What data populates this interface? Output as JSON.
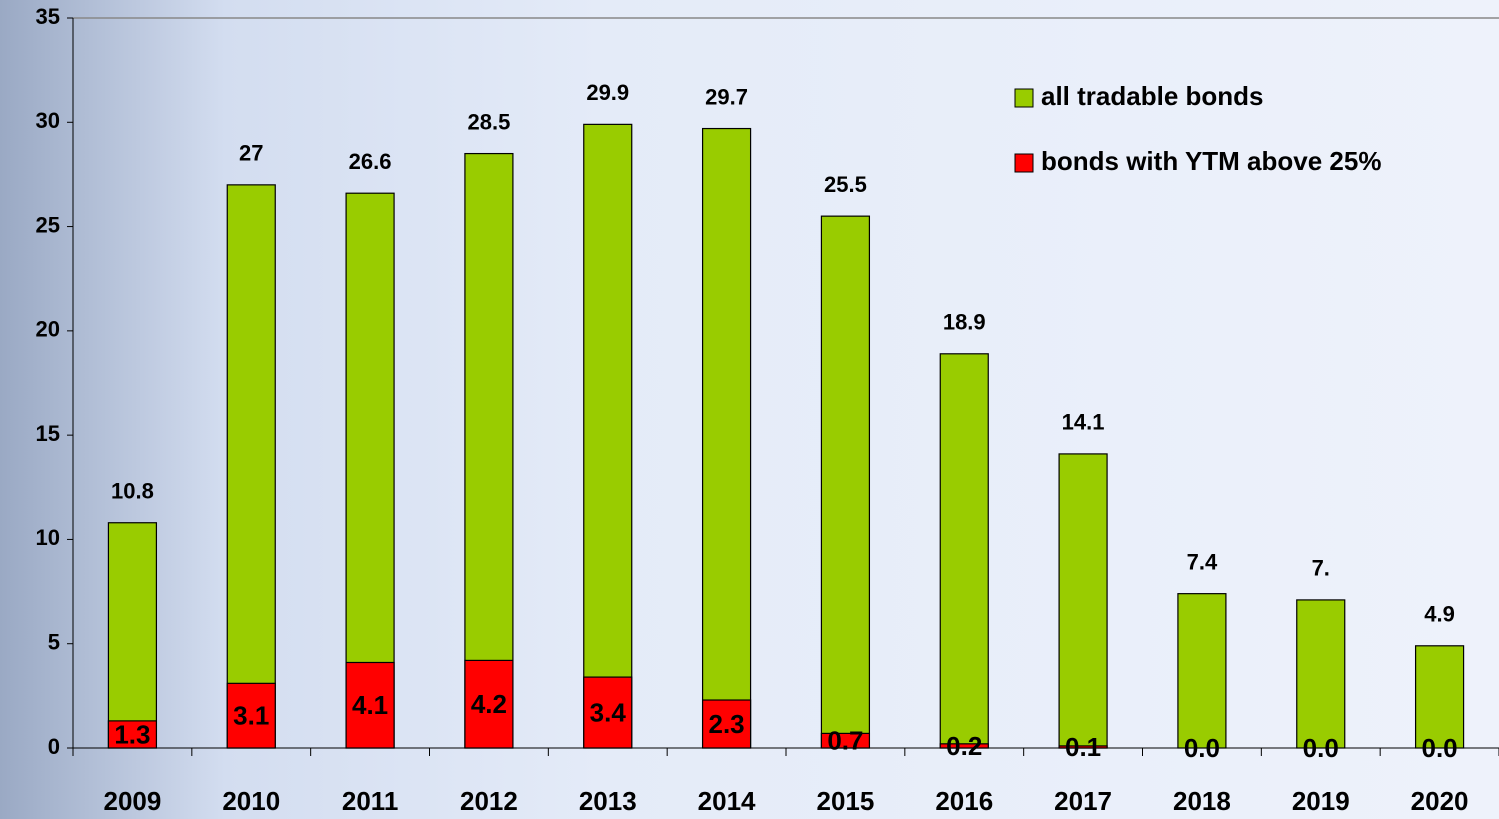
{
  "chart_data": {
    "type": "overlap-bar",
    "categories": [
      "2009",
      "2010",
      "2011",
      "2012",
      "2013",
      "2014",
      "2015",
      "2016",
      "2017",
      "2018",
      "2019",
      "2020"
    ],
    "series": [
      {
        "name": "all tradable bonds",
        "color": "#99cc00",
        "values": [
          10.8,
          27,
          26.6,
          28.5,
          29.9,
          29.7,
          25.5,
          18.9,
          14.1,
          7.4,
          7.1,
          4.9
        ],
        "value_labels": [
          "10.8",
          "27",
          "26.6",
          "28.5",
          "29.9",
          "29.7",
          "25.5",
          "18.9",
          "14.1",
          "7.4",
          "7.",
          "4.9"
        ]
      },
      {
        "name": "bonds with YTM above 25%",
        "color": "#ff0000",
        "values": [
          1.3,
          3.1,
          4.1,
          4.2,
          3.4,
          2.3,
          0.7,
          0.2,
          0.1,
          0,
          0,
          0
        ],
        "value_labels": [
          "1.3",
          "3.1",
          "4.1",
          "4.2",
          "3.4",
          "2.3",
          "0.7",
          "0.2",
          "0.1",
          "0.0",
          "0.0",
          "0.0"
        ]
      }
    ],
    "ylim": [
      0,
      35
    ],
    "yticks": [
      0,
      5,
      10,
      15,
      20,
      25,
      30,
      35
    ]
  }
}
